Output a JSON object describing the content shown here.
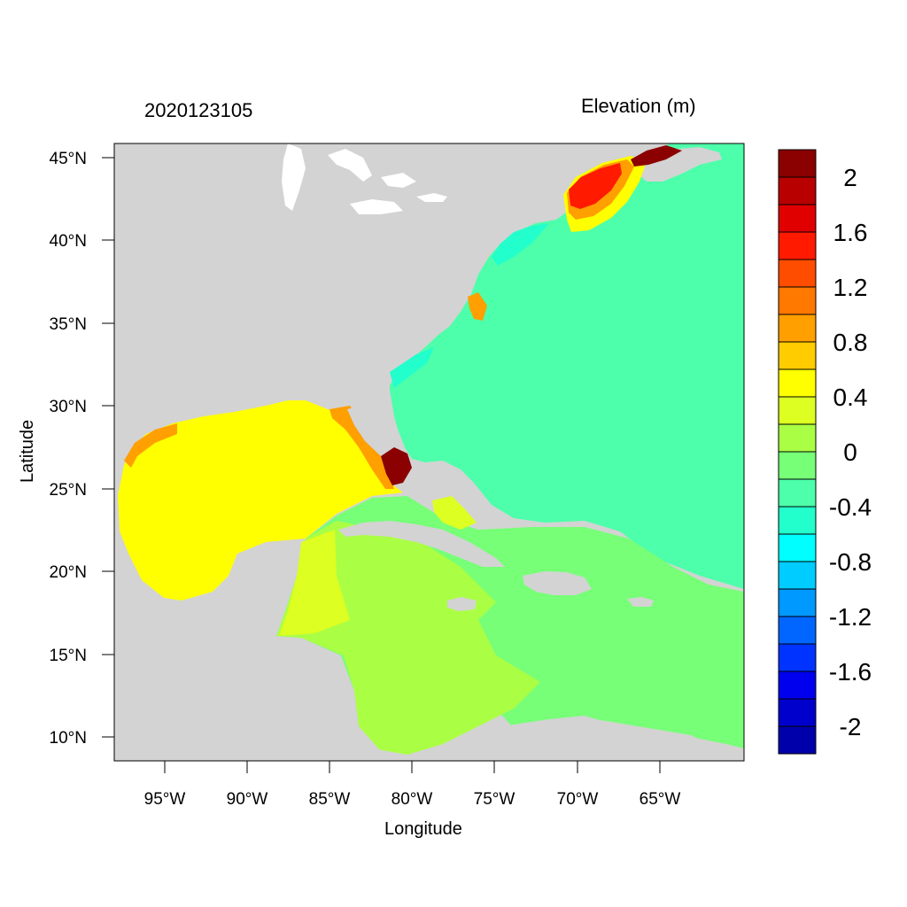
{
  "header": {
    "date_label": "2020123105",
    "variable_label": "Elevation (m)"
  },
  "axes": {
    "xlabel": "Longitude",
    "ylabel": "Latitude",
    "lon_ticks": [
      "95°W",
      "90°W",
      "85°W",
      "80°W",
      "75°W",
      "70°W",
      "65°W"
    ],
    "lat_ticks": [
      "45°N",
      "40°N",
      "35°N",
      "30°N",
      "25°N",
      "20°N",
      "15°N",
      "10°N"
    ]
  },
  "colorbar": {
    "labels": [
      "2",
      "1.6",
      "1.2",
      "0.8",
      "0.4",
      "0",
      "-0.4",
      "-0.8",
      "-1.2",
      "-1.6",
      "-2"
    ],
    "colors": [
      "#8b0000",
      "#b80000",
      "#e00000",
      "#ff1a00",
      "#ff4d00",
      "#ff7800",
      "#ff9f00",
      "#ffcc00",
      "#ffff00",
      "#ddff22",
      "#aaff44",
      "#77ff77",
      "#4dffaa",
      "#22ffcc",
      "#00ffff",
      "#00ccff",
      "#0099ff",
      "#0066ff",
      "#0033ff",
      "#0000ee",
      "#0000cc",
      "#0000aa"
    ]
  },
  "map": {
    "land_color": "#d3d3d3",
    "water_color": "#ffffff",
    "atlantic_color": "#4dffaa",
    "gulf_color": "#ffff00",
    "caribbean_color": "#77ff77"
  }
}
